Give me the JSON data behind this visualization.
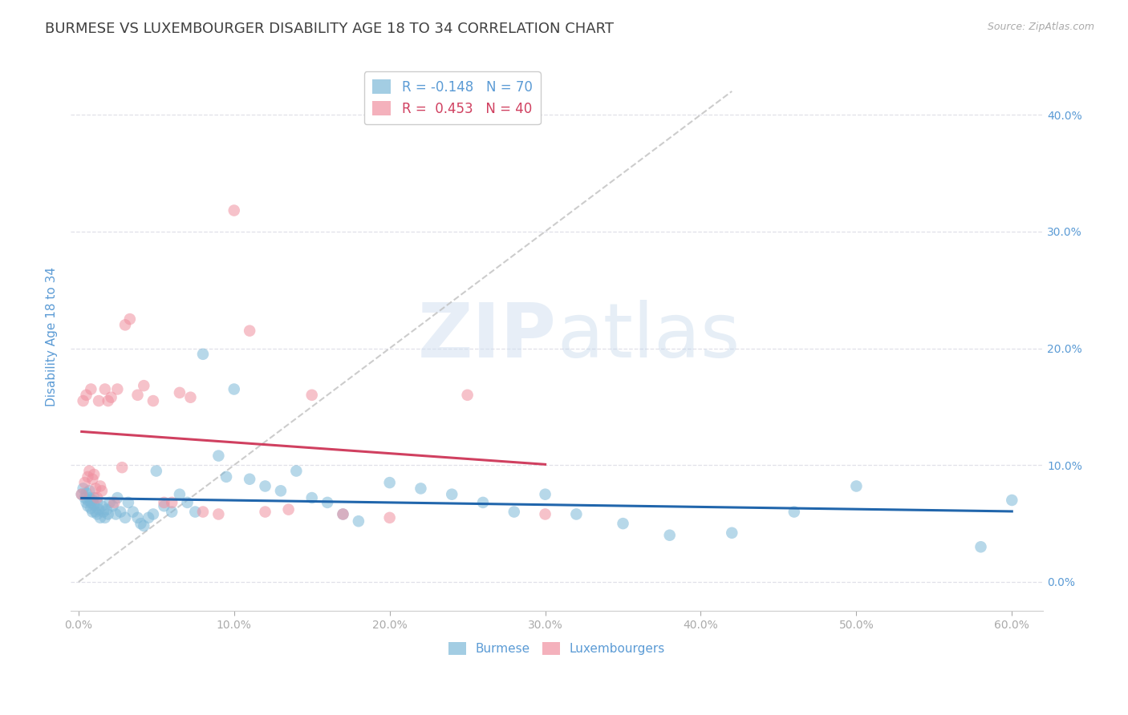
{
  "title": "BURMESE VS LUXEMBOURGER DISABILITY AGE 18 TO 34 CORRELATION CHART",
  "source": "Source: ZipAtlas.com",
  "ylabel": "Disability Age 18 to 34",
  "xlim": [
    -0.005,
    0.62
  ],
  "ylim": [
    -0.025,
    0.445
  ],
  "xticks": [
    0.0,
    0.1,
    0.2,
    0.3,
    0.4,
    0.5,
    0.6
  ],
  "xtick_labels": [
    "0.0%",
    "10.0%",
    "20.0%",
    "30.0%",
    "40.0%",
    "50.0%",
    "60.0%"
  ],
  "yticks": [
    0.0,
    0.1,
    0.2,
    0.3,
    0.4
  ],
  "ytick_labels": [
    "0.0%",
    "10.0%",
    "20.0%",
    "30.0%",
    "40.0%"
  ],
  "burmese_color": "#7db8d8",
  "luxembourger_color": "#f090a0",
  "trend_blue": "#2166ac",
  "trend_pink": "#d04060",
  "diag_color": "#c0c0c0",
  "legend_R_blue": "-0.148",
  "legend_N_blue": "70",
  "legend_R_pink": "0.453",
  "legend_N_pink": "40",
  "burmese_x": [
    0.002,
    0.003,
    0.004,
    0.005,
    0.005,
    0.006,
    0.006,
    0.007,
    0.007,
    0.008,
    0.008,
    0.009,
    0.009,
    0.01,
    0.01,
    0.011,
    0.012,
    0.012,
    0.013,
    0.014,
    0.015,
    0.016,
    0.017,
    0.018,
    0.019,
    0.02,
    0.022,
    0.024,
    0.025,
    0.027,
    0.03,
    0.032,
    0.035,
    0.038,
    0.04,
    0.042,
    0.045,
    0.048,
    0.05,
    0.055,
    0.06,
    0.065,
    0.07,
    0.075,
    0.08,
    0.09,
    0.095,
    0.1,
    0.11,
    0.12,
    0.13,
    0.14,
    0.15,
    0.16,
    0.17,
    0.18,
    0.2,
    0.22,
    0.24,
    0.26,
    0.28,
    0.3,
    0.32,
    0.35,
    0.38,
    0.42,
    0.46,
    0.5,
    0.58,
    0.6
  ],
  "burmese_y": [
    0.075,
    0.08,
    0.072,
    0.068,
    0.076,
    0.07,
    0.065,
    0.078,
    0.072,
    0.068,
    0.063,
    0.07,
    0.06,
    0.072,
    0.066,
    0.06,
    0.068,
    0.058,
    0.062,
    0.055,
    0.065,
    0.06,
    0.055,
    0.062,
    0.058,
    0.068,
    0.065,
    0.058,
    0.072,
    0.06,
    0.055,
    0.068,
    0.06,
    0.055,
    0.05,
    0.048,
    0.055,
    0.058,
    0.095,
    0.065,
    0.06,
    0.075,
    0.068,
    0.06,
    0.195,
    0.108,
    0.09,
    0.165,
    0.088,
    0.082,
    0.078,
    0.095,
    0.072,
    0.068,
    0.058,
    0.052,
    0.085,
    0.08,
    0.075,
    0.068,
    0.06,
    0.075,
    0.058,
    0.05,
    0.04,
    0.042,
    0.06,
    0.082,
    0.03,
    0.07
  ],
  "luxembourger_x": [
    0.002,
    0.003,
    0.004,
    0.005,
    0.006,
    0.007,
    0.008,
    0.009,
    0.01,
    0.011,
    0.012,
    0.013,
    0.014,
    0.015,
    0.017,
    0.019,
    0.021,
    0.023,
    0.025,
    0.028,
    0.03,
    0.033,
    0.038,
    0.042,
    0.048,
    0.055,
    0.06,
    0.065,
    0.072,
    0.08,
    0.09,
    0.1,
    0.11,
    0.12,
    0.135,
    0.15,
    0.17,
    0.2,
    0.25,
    0.3
  ],
  "luxembourger_y": [
    0.075,
    0.155,
    0.085,
    0.16,
    0.09,
    0.095,
    0.165,
    0.088,
    0.092,
    0.08,
    0.072,
    0.155,
    0.082,
    0.078,
    0.165,
    0.155,
    0.158,
    0.068,
    0.165,
    0.098,
    0.22,
    0.225,
    0.16,
    0.168,
    0.155,
    0.068,
    0.068,
    0.162,
    0.158,
    0.06,
    0.058,
    0.318,
    0.215,
    0.06,
    0.062,
    0.16,
    0.058,
    0.055,
    0.16,
    0.058
  ],
  "watermark_zip": "ZIP",
  "watermark_atlas": "atlas",
  "background_color": "#ffffff",
  "grid_color": "#e0e0e8",
  "axis_label_color": "#5b9bd5",
  "title_color": "#404040",
  "title_fontsize": 13,
  "axis_fontsize": 11,
  "tick_fontsize": 10
}
